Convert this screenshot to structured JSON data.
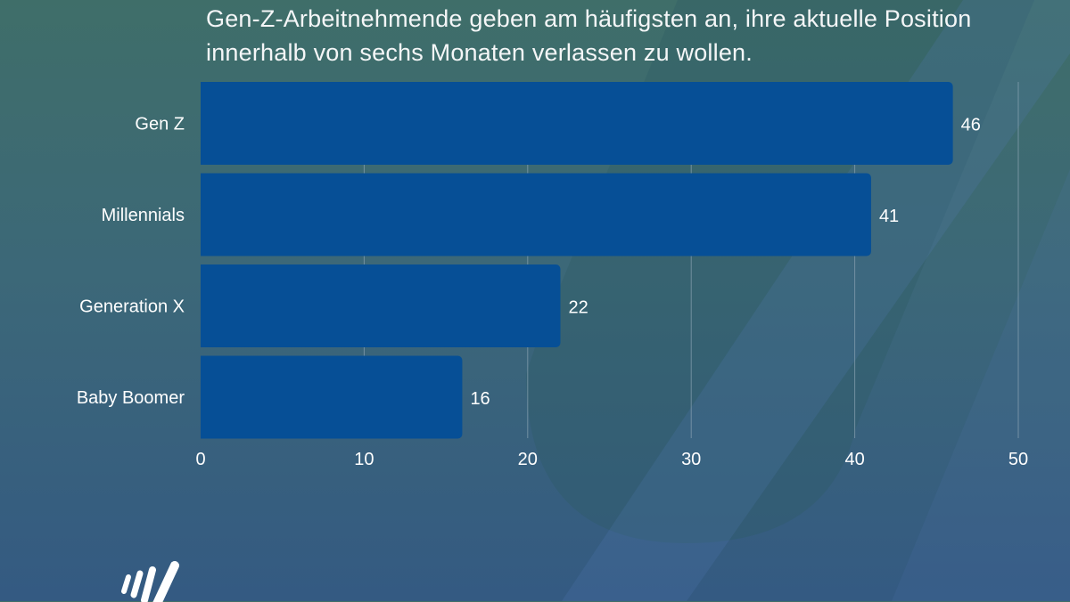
{
  "chart_data": {
    "type": "bar",
    "orientation": "horizontal",
    "title": "Gen-Z-Arbeitnehmende geben am häufigsten an, ihre aktuelle Position innerhalb von sechs Monaten verlassen zu wollen.",
    "categories": [
      "Gen Z",
      "Millennials",
      "Generation X",
      "Baby Boomer"
    ],
    "values": [
      46,
      41,
      22,
      16
    ],
    "xlim": [
      0,
      50
    ],
    "xticks": [
      0,
      10,
      20,
      30,
      40,
      50
    ],
    "grid": true,
    "data_labels": true,
    "colors": {
      "bar": "#064f96",
      "text": "#ffffff",
      "grid": "#8aa3b3"
    }
  }
}
